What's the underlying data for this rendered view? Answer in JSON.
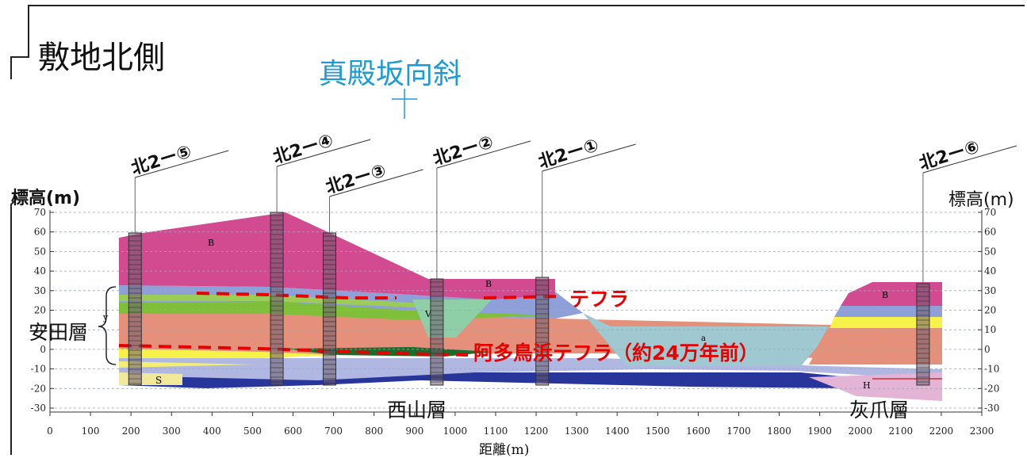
{
  "title": "敷地北側",
  "syncline_label": "真殿坂向斜",
  "y_axis_label_left": "標高(m)",
  "y_axis_label_right": "標高(m)",
  "x_axis_label": "距離(m)",
  "formations": {
    "yasuda": "安田層",
    "nishiyama": "西山層",
    "haizume": "灰爪層"
  },
  "tephra_labels": {
    "tephra": "テフラ",
    "ata": "阿多鳥浜テフラ（約24万年前）"
  },
  "unit_letters": {
    "B": "B",
    "V": "V",
    "S": "S",
    "H": "H",
    "a": "a",
    "y": "y"
  },
  "boreholes": [
    {
      "label": "北2ー⑤",
      "distance_m": 210
    },
    {
      "label": "北2ー④",
      "distance_m": 560
    },
    {
      "label": "北2ー③",
      "distance_m": 690
    },
    {
      "label": "北2ー②",
      "distance_m": 955
    },
    {
      "label": "北2ー①",
      "distance_m": 1215
    },
    {
      "label": "北2ー⑥",
      "distance_m": 2155
    }
  ],
  "chart_data": {
    "type": "diagram",
    "x_ticks": [
      0,
      100,
      200,
      300,
      400,
      500,
      600,
      700,
      800,
      900,
      1000,
      1100,
      1200,
      1300,
      1400,
      1500,
      1600,
      1700,
      1800,
      1900,
      2000,
      2100,
      2200,
      2300
    ],
    "y_ticks": [
      70,
      60,
      50,
      40,
      30,
      20,
      10,
      0,
      -10,
      -20,
      -30
    ],
    "xlim": [
      0,
      2300
    ],
    "ylim": [
      -35,
      72
    ]
  },
  "colors": {
    "B": "#d24a90",
    "blue_layer": "#8f9fd8",
    "orange": "#e4907a",
    "green": "#7fbf3a",
    "yellow": "#f6f24a",
    "alluvium": "#9fc8d0",
    "nishiyama": "#28369c",
    "tephra_red": "#e60000",
    "syncline": "#1e9ad6"
  }
}
